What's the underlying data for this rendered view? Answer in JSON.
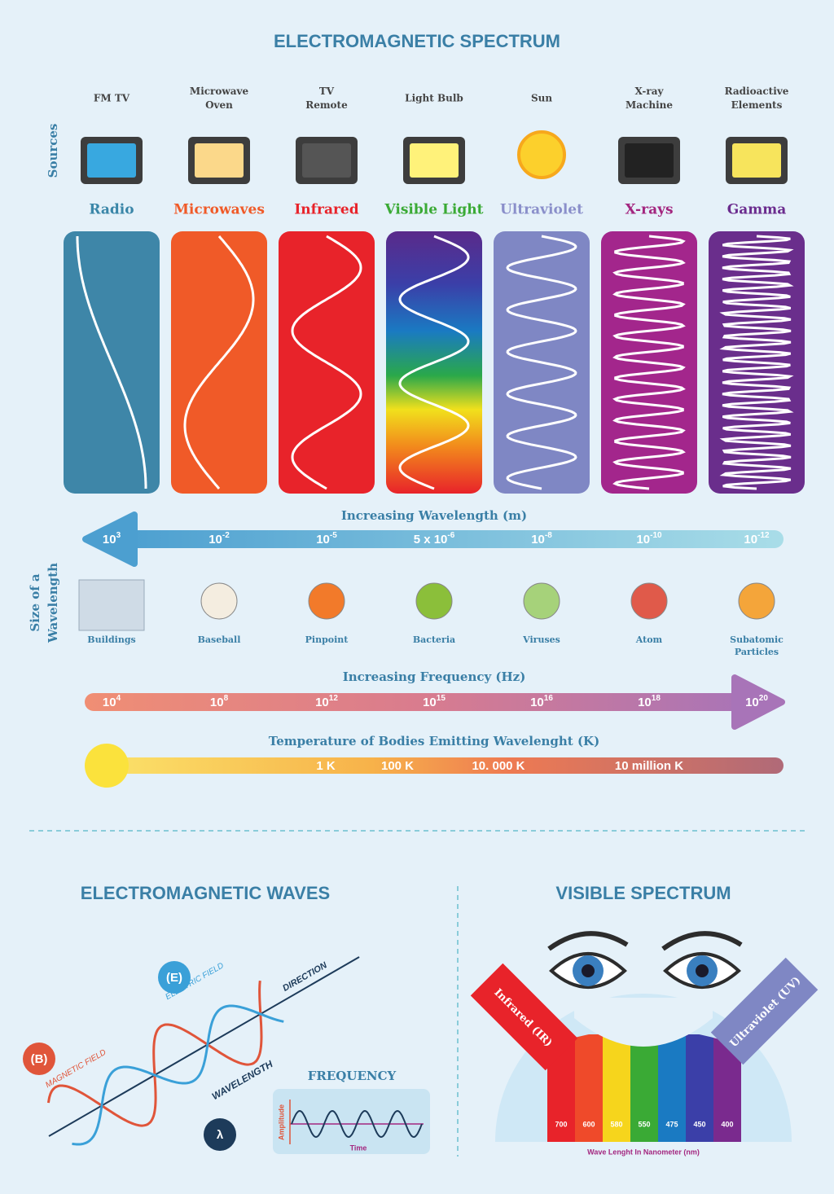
{
  "title": "ELECTROMAGNETIC SPECTRUM",
  "sources_label": "Sources",
  "bands": [
    {
      "source": [
        "FM  TV"
      ],
      "name": "Radio"
    },
    {
      "source": [
        "Microwave",
        "Oven"
      ],
      "name": "Microwaves"
    },
    {
      "source": [
        "TV",
        "Remote"
      ],
      "name": "Infrared"
    },
    {
      "source": [
        "Light Bulb"
      ],
      "name": "Visible Light"
    },
    {
      "source": [
        "Sun"
      ],
      "name": "Ultraviolet"
    },
    {
      "source": [
        "X-ray",
        "Machine"
      ],
      "name": "X-rays"
    },
    {
      "source": [
        "Radioactive",
        "Elements"
      ],
      "name": "Gamma"
    }
  ],
  "wavelength": {
    "title": "Increasing Wavelength (m)",
    "labels": [
      {
        "base": "10",
        "exp": "3"
      },
      {
        "base": "10",
        "exp": "-2"
      },
      {
        "base": "10",
        "exp": "-5"
      },
      {
        "base": "5 x 10",
        "exp": "-6"
      },
      {
        "base": "10",
        "exp": "-8"
      },
      {
        "base": "10",
        "exp": "-10"
      },
      {
        "base": "10",
        "exp": "-12"
      }
    ]
  },
  "size_label": [
    "Size of a",
    "Wavelength"
  ],
  "objects": [
    [
      "Buildings"
    ],
    [
      "Baseball"
    ],
    [
      "Pinpoint"
    ],
    [
      "Bacteria"
    ],
    [
      "Viruses"
    ],
    [
      "Atom"
    ],
    [
      "Subatomic",
      "Particles"
    ]
  ],
  "frequency": {
    "title": "Increasing Frequency (Hz)",
    "labels": [
      {
        "base": "10",
        "exp": "4"
      },
      {
        "base": "10",
        "exp": "8"
      },
      {
        "base": "10",
        "exp": "12"
      },
      {
        "base": "10",
        "exp": "15"
      },
      {
        "base": "10",
        "exp": "16"
      },
      {
        "base": "10",
        "exp": "18"
      },
      {
        "base": "10",
        "exp": "20"
      }
    ]
  },
  "temperature": {
    "title": "Temperature of Bodies Emitting Wavelenght (K)",
    "labels": [
      "1 K",
      "100 K",
      "10. 000 K",
      "10 million K"
    ]
  },
  "em_waves": {
    "title": "ELECTROMAGNETIC WAVES",
    "electric_field": "ELECTRIC FIELD",
    "magnetic_field": "MAGNETIC FIELD",
    "direction": "DIRECTION",
    "wavelength": "WAVELENGTH",
    "e_symbol": "(E)",
    "b_symbol": "(B)",
    "lambda": "λ",
    "frequency_title": "FREQUENCY",
    "amplitude": "Amplitude",
    "time": "Time"
  },
  "visible": {
    "title": "VISIBLE SPECTRUM",
    "infrared": "Infrared (IR)",
    "ultraviolet": "Ultraviolet (UV)",
    "wavelengths": [
      "700",
      "600",
      "580",
      "550",
      "475",
      "450",
      "400"
    ],
    "caption": "Wave Lenght In Nanometer (nm)"
  }
}
